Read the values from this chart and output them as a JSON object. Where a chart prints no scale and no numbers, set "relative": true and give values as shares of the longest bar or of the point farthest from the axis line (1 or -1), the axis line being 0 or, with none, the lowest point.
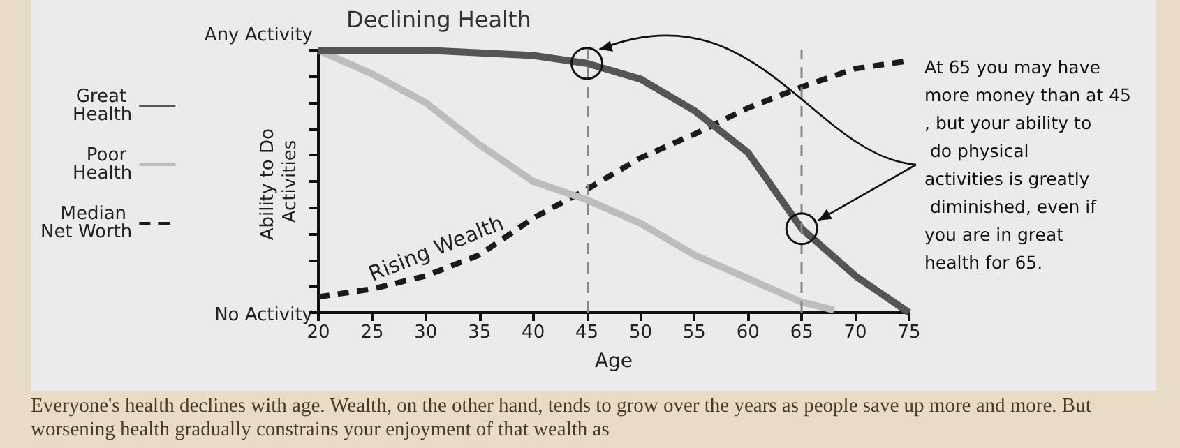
{
  "chart_data": {
    "type": "line",
    "xlabel": "Age",
    "ylabel": "Ability to Do Activities",
    "x": [
      20,
      25,
      30,
      35,
      40,
      45,
      50,
      55,
      60,
      65,
      70,
      75
    ],
    "series": [
      {
        "name": "Great Health",
        "color": "#555555",
        "line_style": "solid",
        "values": [
          1,
          1,
          1,
          0.99,
          0.98,
          0.95,
          0.89,
          0.77,
          0.61,
          0.32,
          0.14,
          0
        ]
      },
      {
        "name": "Poor Health",
        "color": "#bdbdbd",
        "line_style": "solid",
        "x": [
          20,
          25,
          30,
          35,
          40,
          45,
          50,
          55,
          60,
          65,
          68
        ],
        "values": [
          1,
          0.91,
          0.8,
          0.64,
          0.5,
          0.43,
          0.34,
          0.22,
          0.13,
          0.04,
          0.01
        ]
      },
      {
        "name": "Median Net Worth",
        "color": "#1a1a1a",
        "line_style": "dashed",
        "values": [
          0.06,
          0.09,
          0.14,
          0.22,
          0.36,
          0.47,
          0.59,
          0.68,
          0.78,
          0.86,
          0.93,
          0.96
        ]
      }
    ],
    "relative": true,
    "xlim": [
      20,
      75
    ],
    "xticks": [
      20,
      25,
      30,
      35,
      40,
      45,
      50,
      55,
      60,
      65,
      70,
      75
    ],
    "ref_lines": [
      {
        "axis": "x",
        "value": 45,
        "color": "#888888",
        "line_style": "dashed"
      },
      {
        "axis": "x",
        "value": 65,
        "color": "#888888",
        "line_style": "dashed"
      }
    ],
    "annotations": [
      "Declining Health",
      "Rising Wealth",
      "At 65 you may have more money than at 45, but your ability to do physical activities is greatly diminished, even if you are in great health for 65.",
      "Any Activity",
      "No Activity",
      "Everyone's health declines with age. Wealth, on the other hand, tends to grow over the years as people save up more and more. But worsening health gradually constrains your enjoyment of that wealth as"
    ],
    "marker": "none",
    "grid": false,
    "legend": "left"
  }
}
